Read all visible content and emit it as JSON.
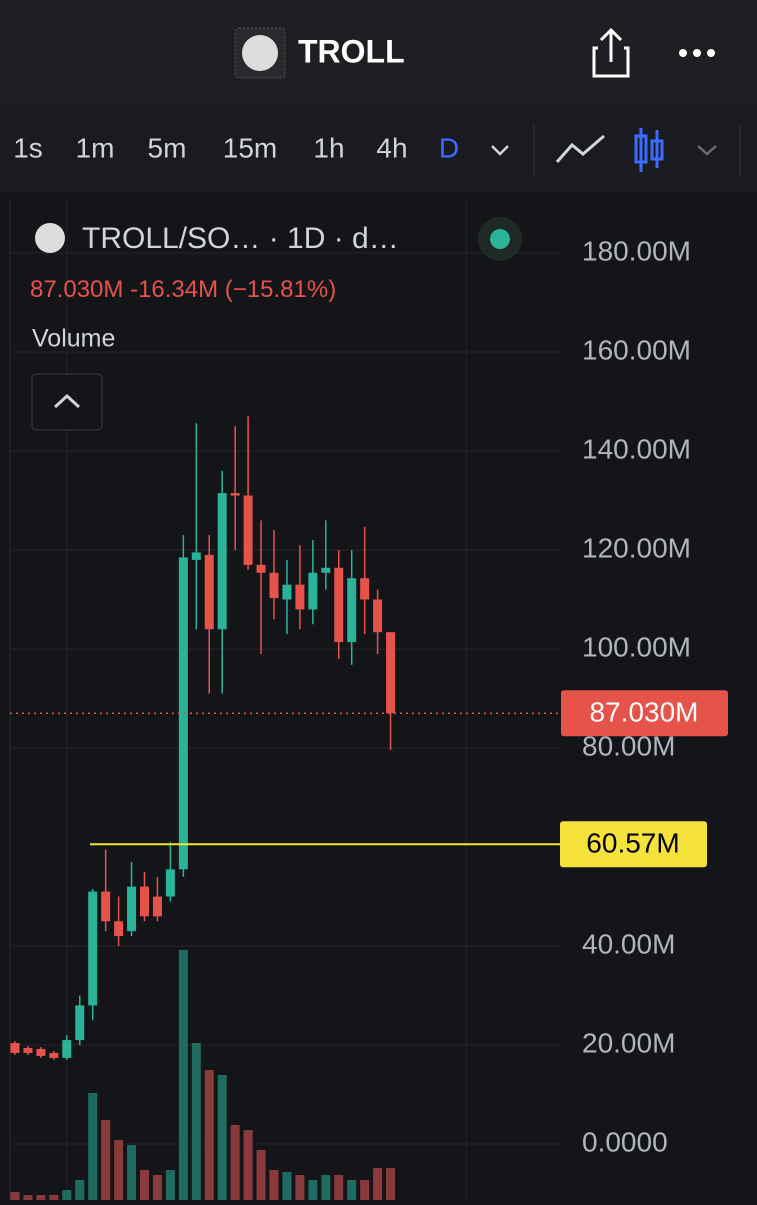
{
  "header": {
    "title": "TROLL"
  },
  "timeframes": [
    "1s",
    "1m",
    "5m",
    "15m",
    "1h",
    "4h",
    "D"
  ],
  "active_timeframe": 6,
  "chart_data": {
    "type": "candlestick",
    "title": "TROLL/SO… · 1D · d…",
    "summary": [
      "87.030M",
      "-16.34M",
      "(−15.81%)"
    ],
    "categories": [
      null,
      null,
      null,
      null,
      null,
      null,
      null,
      null,
      null,
      null,
      null,
      null,
      null,
      null,
      null,
      null,
      null,
      null,
      null,
      null,
      null,
      null,
      null,
      null,
      null,
      null,
      null,
      null,
      null,
      null
    ],
    "open": [
      20.4,
      19.4,
      19.2,
      18.4,
      17.4,
      21,
      28,
      51,
      45,
      43,
      52,
      50,
      50,
      55.5,
      118,
      119,
      104,
      131.5,
      131,
      117,
      115.4,
      110,
      113,
      108,
      115.4,
      116.4,
      101.4,
      114.3,
      110,
      103.4
    ],
    "high": [
      20.8,
      19.8,
      19.6,
      18.8,
      22,
      30,
      51.5,
      59.5,
      50,
      57,
      55,
      54,
      61,
      123,
      145.6,
      123,
      136,
      145,
      147,
      126,
      124,
      118,
      121,
      122,
      126,
      120,
      120,
      124.7,
      112,
      103.4
    ],
    "low": [
      18,
      18,
      17.4,
      17,
      17,
      20,
      25,
      43,
      40,
      42,
      45,
      45,
      49,
      54,
      104,
      91,
      91,
      120,
      116,
      99,
      106,
      103,
      104,
      105,
      112,
      98,
      96.8,
      103,
      99,
      79.6
    ],
    "close": [
      18.4,
      18.4,
      17.8,
      17.4,
      21,
      28,
      51,
      45,
      42,
      52,
      46,
      46,
      55.5,
      118.5,
      119.5,
      104,
      131.5,
      131,
      117,
      115.4,
      110.3,
      113,
      108,
      115.4,
      116.4,
      101.4,
      114.3,
      110,
      103.4,
      87.03
    ],
    "volume": {
      "name": "Volume",
      "ylim": [
        0,
        300
      ],
      "values": [
        8,
        5,
        5,
        5,
        10,
        20,
        107,
        80,
        60,
        55,
        30,
        25,
        30,
        250,
        157,
        130,
        125,
        75,
        70,
        50,
        30,
        28,
        25,
        20,
        25,
        25,
        20,
        20,
        32,
        32
      ],
      "up_color": "#1f6b5f",
      "down_color": "#8a3a3c"
    },
    "up_color": "#2bb39a",
    "down_color": "#e5534b",
    "ylim": [
      -11.31,
      190.71
    ],
    "yticks": [
      {
        "value": 0,
        "label": "0.0000"
      },
      {
        "value": 20,
        "label": "20.00M"
      },
      {
        "value": 40,
        "label": "40.00M"
      },
      {
        "value": 80,
        "label": "80.00M"
      },
      {
        "value": 100,
        "label": "100.00M"
      },
      {
        "value": 120,
        "label": "120.00M"
      },
      {
        "value": 140,
        "label": "140.00M"
      },
      {
        "value": 160,
        "label": "160.00M"
      },
      {
        "value": 180,
        "label": "180.00M"
      }
    ],
    "grid": true,
    "last_price": {
      "value": 87.03,
      "label": "87.030M"
    },
    "hline": {
      "value": 60.57,
      "label": "60.57M",
      "color": "#f5e33b"
    }
  }
}
